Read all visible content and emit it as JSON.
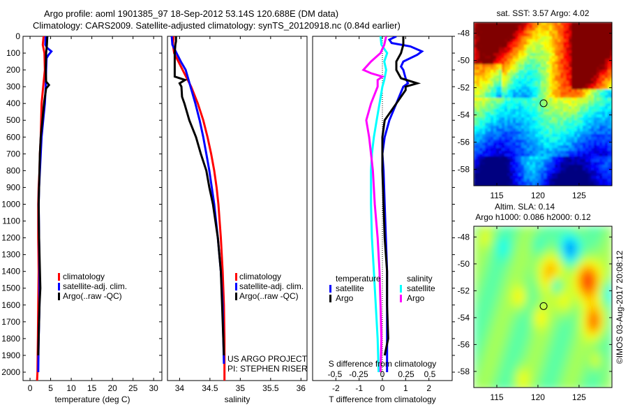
{
  "header": {
    "line1": "Argo profile: aoml 1901385_97 18-Sep-2012 53.14S 120.688E (DM data)",
    "line2": "Climatology: CARS2009. Satellite-adjusted climatology: synTS_20120918.nc (0.84d earlier)"
  },
  "colors": {
    "climatology": "#ff0000",
    "satellite_adj": "#0000ff",
    "argo": "#000000",
    "sal_satellite": "#00ffff",
    "sal_argo": "#ff00ff"
  },
  "chart_data": [
    {
      "type": "line",
      "name": "temperature-profile",
      "title": "",
      "xlabel": "temperature (deg C)",
      "ylabel": "",
      "xlim": [
        -1.7,
        32
      ],
      "ylim": [
        2050,
        0
      ],
      "xticks": [
        0,
        5,
        10,
        15,
        20,
        25,
        30
      ],
      "yticks": [
        0,
        100,
        200,
        300,
        400,
        500,
        600,
        700,
        800,
        900,
        1000,
        1100,
        1200,
        1300,
        1400,
        1500,
        1600,
        1700,
        1800,
        1900,
        2000
      ],
      "legend": [
        "climatology",
        "satellite-adj. clim.",
        "Argo(..raw -QC)"
      ],
      "legend_position": "center",
      "series": [
        {
          "name": "climatology",
          "color": "#ff0000",
          "depth": [
            0,
            50,
            100,
            200,
            300,
            400,
            500,
            600,
            700,
            800,
            900,
            1000,
            1200,
            1400,
            1600,
            1800,
            2000,
            2050
          ],
          "values": [
            3.3,
            3.1,
            3.5,
            3.6,
            3.2,
            2.8,
            2.7,
            2.6,
            2.4,
            2.3,
            2.1,
            2.0,
            2.0,
            2.1,
            2.0,
            1.9,
            1.8,
            1.7
          ]
        },
        {
          "name": "satellite-adj. clim.",
          "color": "#0000ff",
          "depth": [
            0,
            50,
            70,
            90,
            110,
            130,
            200,
            300,
            400,
            500,
            600,
            700,
            800,
            900,
            1000,
            1200,
            1400,
            1600,
            1800,
            2000
          ],
          "values": [
            3.8,
            3.7,
            4.2,
            5.2,
            4.5,
            4.0,
            3.9,
            3.8,
            3.6,
            3.2,
            2.8,
            2.6,
            2.4,
            2.2,
            2.1,
            2.2,
            2.3,
            2.3,
            2.1,
            2.0
          ]
        },
        {
          "name": "Argo(..raw -QC)",
          "color": "#000000",
          "depth": [
            0,
            50,
            100,
            200,
            270,
            290,
            310,
            400,
            500,
            600,
            700,
            800,
            900,
            1000,
            1200,
            1400,
            1500,
            1600,
            1800,
            1900
          ],
          "values": [
            4.2,
            4.1,
            3.9,
            3.8,
            3.9,
            4.6,
            3.9,
            3.4,
            3.0,
            2.6,
            2.4,
            2.3,
            2.2,
            2.1,
            2.2,
            2.4,
            2.5,
            2.3,
            2.1,
            2.0
          ]
        }
      ]
    },
    {
      "type": "line",
      "name": "salinity-profile",
      "xlabel": "salinity",
      "xlim": [
        33.8,
        36.1
      ],
      "ylim": [
        2050,
        0
      ],
      "xticks": [
        34,
        34.5,
        35,
        35.5,
        36
      ],
      "xtick_labels": [
        "34",
        "34.5",
        "35",
        "35.5",
        "36"
      ],
      "legend": [
        "climatology",
        "satellite-adj. clim.",
        "Argo(..raw -QC)"
      ],
      "annotation": [
        "US ARGO PROJECT",
        "PI: STEPHEN RISER"
      ],
      "series": [
        {
          "name": "climatology",
          "color": "#ff0000",
          "depth": [
            0,
            50,
            100,
            200,
            300,
            400,
            500,
            600,
            700,
            800,
            900,
            1000,
            1200,
            1400,
            1600,
            1800,
            2000,
            2050
          ],
          "values": [
            33.9,
            33.89,
            33.91,
            34.05,
            34.19,
            34.3,
            34.39,
            34.46,
            34.52,
            34.57,
            34.61,
            34.64,
            34.68,
            34.71,
            34.73,
            34.74,
            34.74,
            34.74
          ]
        },
        {
          "name": "satellite-adj. clim.",
          "color": "#0000ff",
          "depth": [
            0,
            50,
            100,
            150,
            200,
            300,
            400,
            500,
            600,
            700,
            800,
            900,
            1000,
            1200,
            1400,
            1600,
            1800,
            1950
          ],
          "values": [
            33.87,
            33.88,
            33.95,
            34.02,
            34.1,
            34.18,
            34.26,
            34.33,
            34.39,
            34.44,
            34.49,
            34.53,
            34.57,
            34.63,
            34.68,
            34.71,
            34.72,
            34.73
          ]
        },
        {
          "name": "Argo(..raw -QC)",
          "color": "#000000",
          "depth": [
            0,
            30,
            50,
            100,
            150,
            240,
            260,
            280,
            300,
            360,
            400,
            500,
            600,
            700,
            800,
            900,
            1000,
            1200,
            1400,
            1600,
            1800,
            1900
          ],
          "values": [
            33.94,
            33.94,
            33.93,
            33.92,
            33.92,
            33.92,
            34.09,
            34.0,
            34.03,
            34.04,
            34.08,
            34.16,
            34.27,
            34.35,
            34.44,
            34.49,
            34.55,
            34.63,
            34.68,
            34.7,
            34.72,
            34.73
          ]
        }
      ]
    },
    {
      "type": "line",
      "name": "difference-profile",
      "xlabel": "T difference from climatology",
      "x2label": "S difference from climatology",
      "xlim": [
        -3,
        3
      ],
      "xticks": [
        -2,
        -1,
        0,
        1,
        2
      ],
      "x2lim": [
        -0.735,
        0.735
      ],
      "x2ticks": [
        -0.5,
        -0.25,
        0,
        0.25,
        0.5
      ],
      "x2tick_labels": [
        "-0.5",
        "-0.25",
        "0",
        "0.25",
        "0.5"
      ],
      "ylim": [
        2050,
        0
      ],
      "legend_groups": [
        {
          "title": "temperature",
          "items": [
            "satellite",
            "Argo"
          ]
        },
        {
          "title": "salinity",
          "items": [
            "satellite",
            "Argo"
          ]
        }
      ],
      "series": [
        {
          "name": "temperature satellite",
          "color": "#0000ff",
          "axis": "T",
          "depth": [
            0,
            20,
            40,
            60,
            90,
            110,
            150,
            180,
            200,
            250,
            280,
            300,
            400,
            500,
            600,
            700,
            800,
            1000,
            1200,
            1400,
            1600,
            1800,
            2000
          ],
          "values": [
            0.6,
            0.3,
            0.4,
            1.2,
            1.7,
            1.5,
            0.9,
            0.8,
            0.9,
            1.0,
            1.1,
            0.9,
            0.6,
            0.3,
            0.1,
            0.0,
            0.05,
            0.1,
            0.15,
            0.2,
            0.2,
            0.2,
            0.2
          ]
        },
        {
          "name": "temperature Argo",
          "color": "#000000",
          "axis": "T",
          "depth": [
            0,
            50,
            100,
            150,
            200,
            250,
            280,
            300,
            320,
            400,
            500,
            600,
            700,
            800,
            1000,
            1200,
            1400,
            1600,
            1800,
            1900
          ],
          "values": [
            0.9,
            0.9,
            0.8,
            0.6,
            0.6,
            0.8,
            1.5,
            1.0,
            1.0,
            0.6,
            0.1,
            0.0,
            0.0,
            0.0,
            0.05,
            0.1,
            0.2,
            0.2,
            0.25,
            0.1
          ]
        },
        {
          "name": "salinity satellite",
          "color": "#00ffff",
          "axis": "S",
          "depth": [
            0,
            50,
            100,
            150,
            200,
            260,
            300,
            400,
            500,
            600,
            700,
            800,
            1000,
            1200,
            1400,
            1600,
            1800,
            2000
          ],
          "values": [
            -0.02,
            -0.01,
            0.05,
            0.02,
            0.04,
            0.02,
            0.0,
            -0.03,
            -0.06,
            -0.09,
            -0.11,
            -0.12,
            -0.12,
            -0.11,
            -0.09,
            -0.07,
            -0.05,
            -0.04
          ]
        },
        {
          "name": "salinity Argo",
          "color": "#ff00ff",
          "axis": "S",
          "depth": [
            0,
            50,
            100,
            150,
            200,
            220,
            240,
            260,
            280,
            300,
            400,
            500,
            600,
            700,
            800,
            1000,
            1200,
            1400,
            1600,
            1800,
            2000
          ],
          "values": [
            0.04,
            0.02,
            -0.02,
            -0.12,
            -0.2,
            -0.12,
            0.0,
            -0.05,
            -0.05,
            -0.05,
            -0.12,
            -0.17,
            -0.14,
            -0.12,
            -0.1,
            -0.08,
            -0.05,
            -0.03,
            -0.02,
            -0.01,
            -0.02
          ]
        }
      ]
    },
    {
      "type": "heatmap",
      "name": "sst-map",
      "title": "sat. SST: 3.57 Argo: 4.02",
      "xlim": [
        112.2,
        129
      ],
      "ylim": [
        -59.2,
        -47.2
      ],
      "xticks": [
        115,
        120,
        125
      ],
      "yticks": [
        -48,
        -50,
        -52,
        -54,
        -56,
        -58
      ],
      "marker": {
        "lon": 120.688,
        "lat": -53.14
      }
    },
    {
      "type": "heatmap",
      "name": "sla-map",
      "title": "Altim. SLA: 0.14",
      "subtitle": "Argo h1000: 0.086 h2000: 0.12",
      "xlim": [
        112.2,
        129
      ],
      "ylim": [
        -59.2,
        -47.2
      ],
      "xticks": [
        115,
        120,
        125
      ],
      "yticks": [
        -48,
        -50,
        -52,
        -54,
        -56,
        -58
      ],
      "marker": {
        "lon": 120.688,
        "lat": -53.14
      },
      "side_label": "©IMOS 03-Aug-2017 20:08:12"
    }
  ]
}
